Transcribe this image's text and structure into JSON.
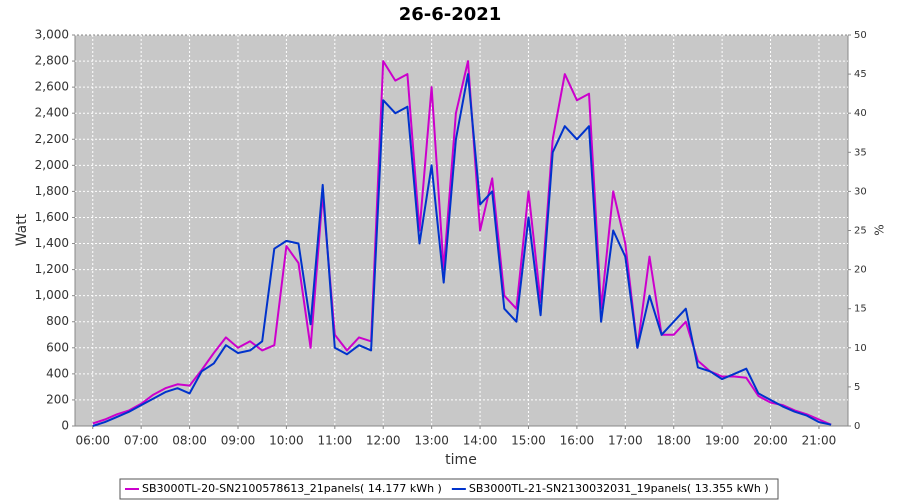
{
  "chart_data": {
    "type": "line",
    "title": "26-6-2021",
    "xlabel": "time",
    "ylabel": "Watt",
    "y2label": "%",
    "x": [
      "06:00",
      "06:15",
      "06:30",
      "06:45",
      "07:00",
      "07:15",
      "07:30",
      "07:45",
      "08:00",
      "08:15",
      "08:30",
      "08:45",
      "09:00",
      "09:15",
      "09:30",
      "09:45",
      "10:00",
      "10:15",
      "10:30",
      "10:45",
      "11:00",
      "11:15",
      "11:30",
      "11:45",
      "12:00",
      "12:15",
      "12:30",
      "12:45",
      "13:00",
      "13:15",
      "13:30",
      "13:45",
      "14:00",
      "14:15",
      "14:30",
      "14:45",
      "15:00",
      "15:15",
      "15:30",
      "15:45",
      "16:00",
      "16:15",
      "16:30",
      "16:45",
      "17:00",
      "17:15",
      "17:30",
      "17:45",
      "18:00",
      "18:15",
      "18:30",
      "18:45",
      "19:00",
      "19:15",
      "19:30",
      "19:45",
      "20:00",
      "20:15",
      "20:30",
      "20:45",
      "21:00",
      "21:15"
    ],
    "series": [
      {
        "name": "SB3000TL-20-SN2100578613_21panels( 14.177 kWh )",
        "color": "#cc00cc",
        "values": [
          20,
          50,
          90,
          120,
          170,
          240,
          290,
          320,
          310,
          430,
          560,
          680,
          600,
          650,
          580,
          620,
          1380,
          1250,
          600,
          1780,
          700,
          580,
          680,
          650,
          2800,
          2650,
          2700,
          1500,
          2600,
          1200,
          2400,
          2800,
          1500,
          1900,
          1000,
          900,
          1800,
          950,
          2200,
          2700,
          2500,
          2550,
          900,
          1800,
          1400,
          600,
          1300,
          700,
          700,
          800,
          500,
          420,
          380,
          380,
          370,
          230,
          180,
          160,
          120,
          90,
          50,
          10
        ]
      },
      {
        "name": "SB3000TL-21-SN2130032031_19panels( 13.355 kWh )",
        "color": "#0033cc",
        "values": [
          0,
          30,
          70,
          110,
          160,
          210,
          260,
          290,
          250,
          420,
          480,
          620,
          560,
          580,
          650,
          1360,
          1420,
          1400,
          780,
          1850,
          600,
          550,
          620,
          580,
          2500,
          2400,
          2450,
          1400,
          2000,
          1100,
          2200,
          2700,
          1700,
          1800,
          900,
          800,
          1600,
          850,
          2100,
          2300,
          2200,
          2300,
          800,
          1500,
          1300,
          600,
          1000,
          700,
          800,
          900,
          450,
          420,
          360,
          400,
          440,
          250,
          200,
          150,
          110,
          80,
          30,
          10
        ]
      }
    ],
    "xlim": [
      "05:38",
      "21:36"
    ],
    "xticks": [
      "06:00",
      "07:00",
      "08:00",
      "09:00",
      "10:00",
      "11:00",
      "12:00",
      "13:00",
      "14:00",
      "15:00",
      "16:00",
      "17:00",
      "18:00",
      "19:00",
      "20:00",
      "21:00"
    ],
    "ylim": [
      0,
      3000
    ],
    "yticks": [
      0,
      200,
      400,
      600,
      800,
      {
        "value": 1000,
        "label": "1,000"
      },
      {
        "value": 1200,
        "label": "1,200"
      },
      {
        "value": 1400,
        "label": "1,400"
      },
      {
        "value": 1600,
        "label": "1,600"
      },
      {
        "value": 1800,
        "label": "1,800"
      },
      {
        "value": 2000,
        "label": "2,000"
      },
      {
        "value": 2200,
        "label": "2,200"
      },
      {
        "value": 2400,
        "label": "2,400"
      },
      {
        "value": 2600,
        "label": "2,600"
      },
      {
        "value": 2800,
        "label": "2,800"
      },
      {
        "value": 3000,
        "label": "3,000"
      }
    ],
    "y2lim": [
      0,
      50
    ],
    "y2ticks": [
      0,
      5,
      10,
      15,
      20,
      25,
      30,
      35,
      40,
      45,
      50
    ],
    "grid": true,
    "legend": "bottom"
  }
}
